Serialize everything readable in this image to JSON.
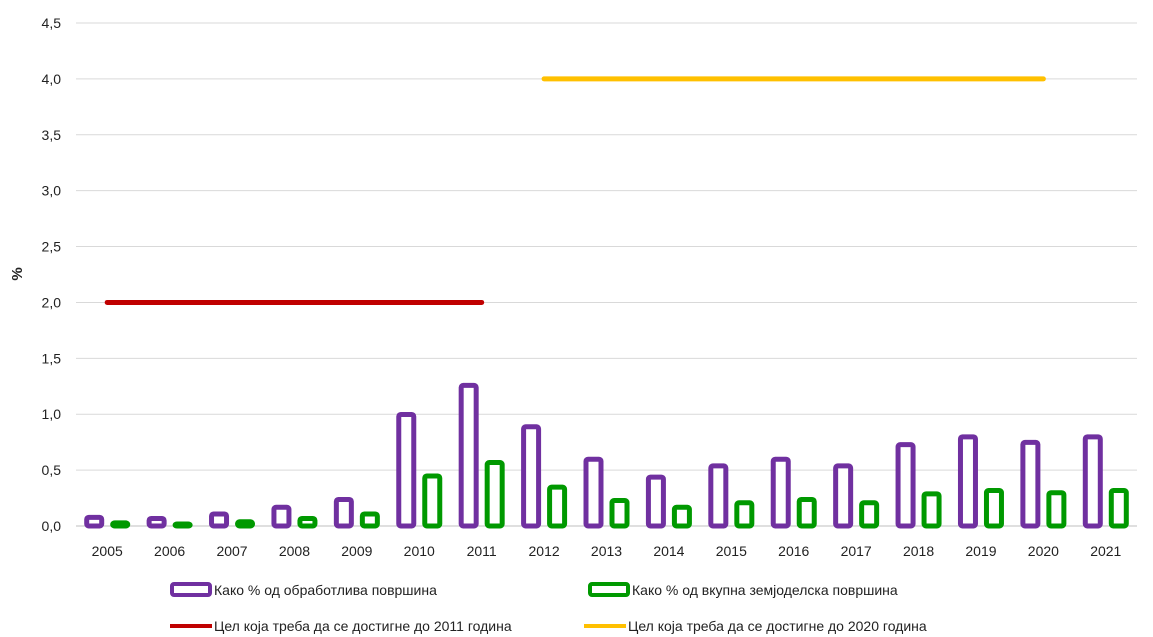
{
  "chart_data": {
    "type": "bar",
    "title": "",
    "xlabel": "",
    "ylabel": "%",
    "ylim": [
      0,
      4.5
    ],
    "ytick_step": 0.5,
    "yticks": [
      "0,0",
      "0,5",
      "1,0",
      "1,5",
      "2,0",
      "2,5",
      "3,0",
      "3,5",
      "4,0",
      "4,5"
    ],
    "grid": "horizontal",
    "legend_position": "bottom",
    "categories": [
      "2005",
      "2006",
      "2007",
      "2008",
      "2009",
      "2010",
      "2011",
      "2012",
      "2013",
      "2014",
      "2015",
      "2016",
      "2017",
      "2018",
      "2019",
      "2020",
      "2021"
    ],
    "series": [
      {
        "name": "Како % од обработлива површина",
        "color": "#7030A0",
        "style": "outline-bar",
        "values": [
          0.1,
          0.09,
          0.13,
          0.19,
          0.26,
          1.02,
          1.28,
          0.91,
          0.62,
          0.46,
          0.56,
          0.62,
          0.56,
          0.75,
          0.82,
          0.77,
          0.82
        ]
      },
      {
        "name": "Како % од вкупна земјоделска површина",
        "color": "#009900",
        "style": "outline-bar",
        "values": [
          0.05,
          0.04,
          0.06,
          0.09,
          0.13,
          0.47,
          0.59,
          0.37,
          0.25,
          0.19,
          0.23,
          0.26,
          0.23,
          0.31,
          0.34,
          0.32,
          0.34
        ]
      }
    ],
    "target_lines": [
      {
        "name": "Цел која треба да се достигне до 2011 година",
        "color": "#C00000",
        "value": 2.0,
        "from": "2005",
        "to": "2011"
      },
      {
        "name": "Цел која треба да се достигне до 2020 година",
        "color": "#FFC000",
        "value": 4.0,
        "from": "2012",
        "to": "2020"
      }
    ]
  }
}
